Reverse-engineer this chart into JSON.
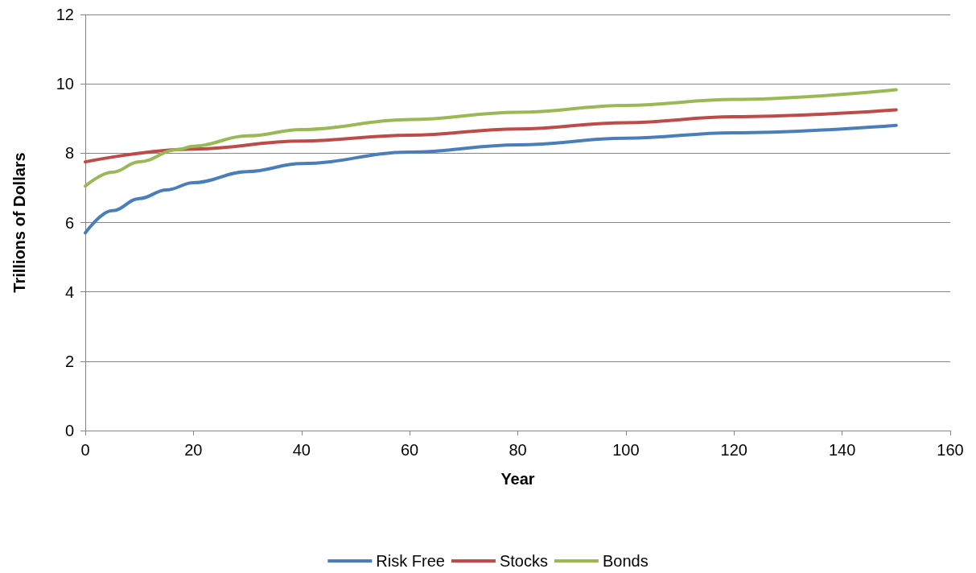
{
  "chart_data": {
    "type": "line",
    "xlabel": "Year",
    "ylabel": "Trillions of Dollars",
    "xlim": [
      0,
      160
    ],
    "xticks": [
      0,
      20,
      40,
      60,
      80,
      100,
      120,
      140,
      160
    ],
    "ylim": [
      0,
      12
    ],
    "yticks": [
      0,
      2,
      4,
      6,
      8,
      10,
      12
    ],
    "grid": "y",
    "legend": "bottom",
    "marker": "none",
    "line_style": "solid",
    "series": [
      {
        "name": "Risk Free",
        "color": "#4a7ebb",
        "x": [
          0,
          5,
          10,
          15,
          20,
          30,
          40,
          60,
          80,
          100,
          120,
          150
        ],
        "values": [
          5.7,
          6.34,
          6.69,
          6.94,
          7.15,
          7.47,
          7.7,
          8.03,
          8.24,
          8.43,
          8.59,
          8.8
        ]
      },
      {
        "name": "Stocks",
        "color": "#be4b48",
        "x": [
          0,
          20,
          40,
          60,
          80,
          100,
          120,
          150
        ],
        "values": [
          7.75,
          8.12,
          8.35,
          8.52,
          8.7,
          8.88,
          9.05,
          9.25
        ]
      },
      {
        "name": "Bonds",
        "color": "#98b954",
        "x": [
          0,
          5,
          10,
          17,
          20,
          30,
          40,
          60,
          80,
          100,
          120,
          150
        ],
        "values": [
          7.05,
          7.45,
          7.75,
          8.1,
          8.2,
          8.5,
          8.68,
          8.97,
          9.18,
          9.38,
          9.55,
          9.83
        ]
      }
    ]
  }
}
